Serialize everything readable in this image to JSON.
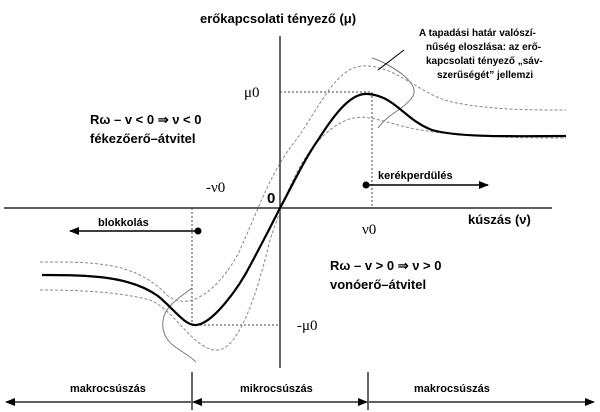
{
  "y_axis_label": "erőkapcsolati tényező (μ)",
  "x_axis_label": "kúszás (ν)",
  "origin_label": "0",
  "mu0_label": "μ0",
  "neg_mu0_label": "-μ0",
  "nu0_label": "ν0",
  "neg_nu0_label": "-ν0",
  "annotation": {
    "line1": "A tapadási határ valószí-",
    "line2": "nűség eloszlása: az erő-",
    "line3": "kapcsolati tényező „sáv-",
    "line4": "szerűségét” jellemzi"
  },
  "braking": {
    "formula": "Rω – v < 0 ⇒ ν < 0",
    "label": "fékezőerő–átvitel"
  },
  "traction": {
    "formula": "Rω – v > 0 ⇒ ν > 0",
    "label": "vonóerő–átvitel"
  },
  "arrows": {
    "wheelspin": "kerékperdülés",
    "lockup": "blokkolás"
  },
  "regions": {
    "left": "makrocsúszás",
    "middle": "mikrocsúszás",
    "right": "makrocsúszás"
  },
  "colors": {
    "curve": "#000000",
    "band": "#888888",
    "dotted": "#444444"
  }
}
